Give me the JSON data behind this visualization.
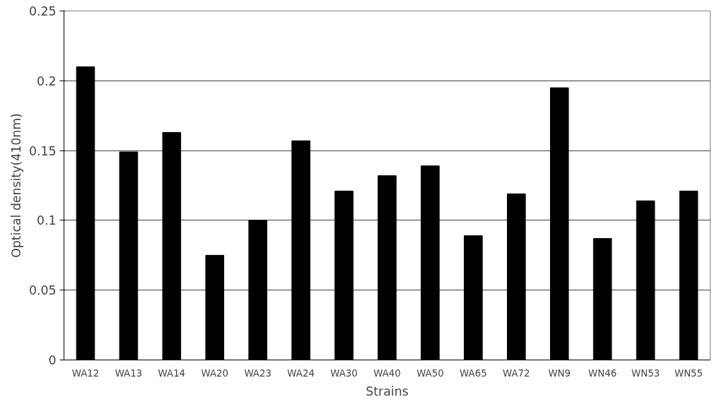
{
  "chart_data": {
    "type": "bar",
    "xlabel": "Strains",
    "ylabel": "Optical density(410nm)",
    "categories": [
      "WA12",
      "WA13",
      "WA14",
      "WA20",
      "WA23",
      "WA24",
      "WA30",
      "WA40",
      "WA50",
      "WA65",
      "WA72",
      "WN9",
      "WN46",
      "WN53",
      "WN55"
    ],
    "values": [
      0.21,
      0.149,
      0.163,
      0.075,
      0.1,
      0.157,
      0.121,
      0.132,
      0.139,
      0.089,
      0.119,
      0.195,
      0.087,
      0.114,
      0.121
    ],
    "color": "#000000",
    "ylim": [
      0,
      0.25
    ],
    "yticks": [
      0,
      0.05,
      0.1,
      0.15,
      0.2,
      0.25
    ],
    "grid": "y"
  }
}
